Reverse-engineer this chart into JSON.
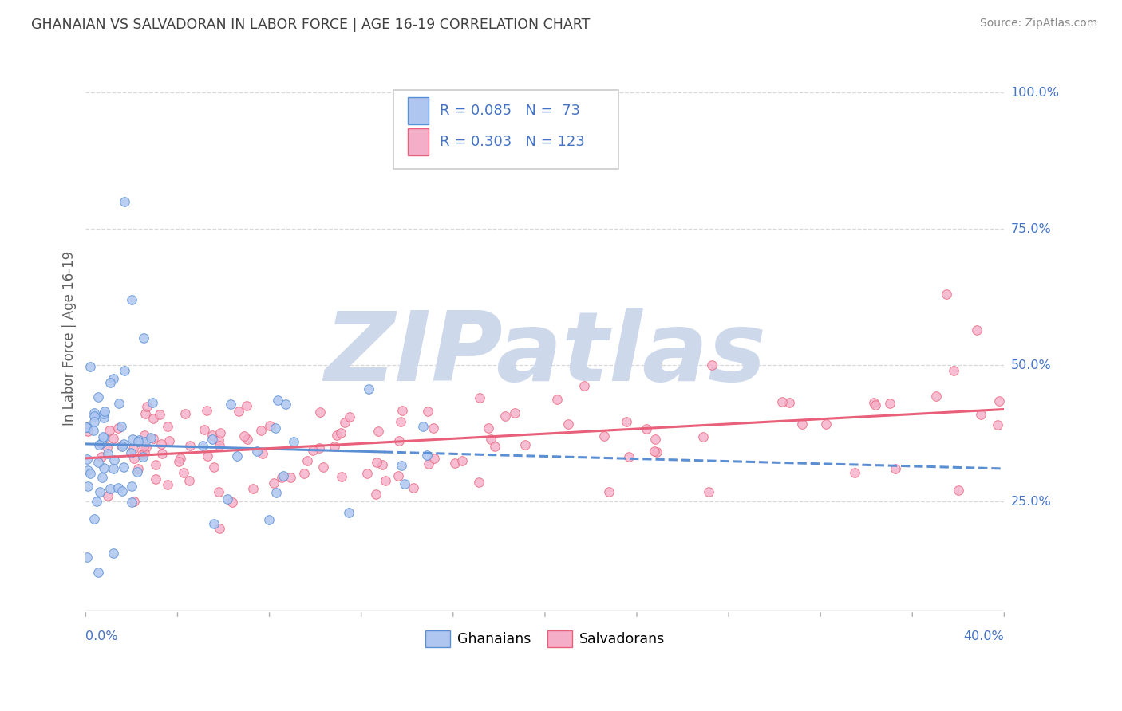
{
  "title": "GHANAIAN VS SALVADORAN IN LABOR FORCE | AGE 16-19 CORRELATION CHART",
  "source_text": "Source: ZipAtlas.com",
  "ylabel": "In Labor Force | Age 16-19",
  "x_min": 0.0,
  "x_max": 0.4,
  "y_min": 0.05,
  "y_max": 1.05,
  "ghanaian_R": 0.085,
  "ghanaian_N": 73,
  "salvadoran_R": 0.303,
  "salvadoran_N": 123,
  "color_ghanaian_scatter": "#aec6f0",
  "color_ghanaian_line": "#5b8fd4",
  "color_salvadoran_scatter": "#f5aec8",
  "color_salvadoran_line": "#e8607a",
  "color_text_blue": "#4472c4",
  "color_title": "#404040",
  "watermark_color": "#cdd9ea",
  "background_color": "#ffffff",
  "grid_color": "#d8d8d8",
  "axis_line_color": "#b0b0b0"
}
